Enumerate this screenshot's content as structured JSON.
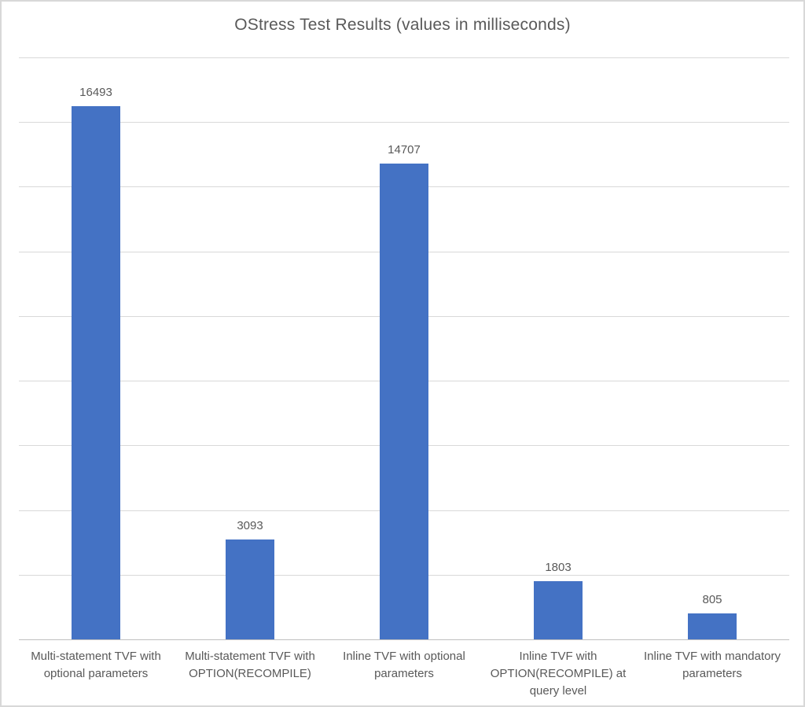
{
  "chart_data": {
    "type": "bar",
    "title": "OStress Test Results (values in milliseconds)",
    "categories": [
      "Multi-statement TVF with optional parameters",
      "Multi-statement TVF with OPTION(RECOMPILE)",
      "Inline TVF with optional parameters",
      "Inline TVF with OPTION(RECOMPILE) at query level",
      "Inline TVF with mandatory parameters"
    ],
    "values": [
      16493,
      3093,
      14707,
      1803,
      805
    ],
    "data_labels": [
      "16493",
      "3093",
      "14707",
      "1803",
      "805"
    ],
    "xlabel": "",
    "ylabel": "",
    "ylim": [
      0,
      18000
    ],
    "gridline_interval": 2000,
    "grid": true,
    "legend_position": "none",
    "y_tick_labels_visible": false,
    "bar_color": "#4472C4",
    "text_color": "#595959",
    "gridline_color": "#D9D9D9",
    "axis_line_color": "#BFBFBF"
  }
}
